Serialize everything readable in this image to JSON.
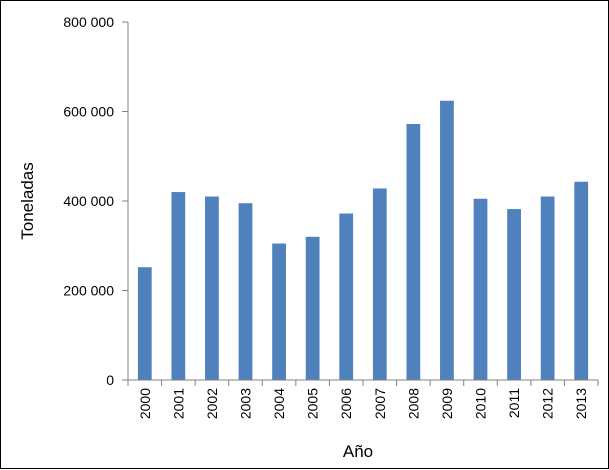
{
  "chart_data": {
    "type": "bar",
    "categories": [
      "2000",
      "2001",
      "2002",
      "2003",
      "2004",
      "2005",
      "2006",
      "2007",
      "2008",
      "2009",
      "2010",
      "2011",
      "2012",
      "2013"
    ],
    "values": [
      252000,
      420000,
      410000,
      395000,
      305000,
      320000,
      372000,
      428000,
      572000,
      624000,
      405000,
      382000,
      410000,
      443000
    ],
    "title": "",
    "xlabel": "Año",
    "ylabel": "Toneladas",
    "ylim": [
      0,
      800000
    ],
    "yticks": [
      0,
      200000,
      400000,
      600000,
      800000
    ],
    "ytick_labels": [
      "0",
      "200 000",
      "400 000",
      "600 000",
      "800 000"
    ],
    "bar_color": "#4f81bd",
    "grid": false,
    "legend": "none"
  }
}
